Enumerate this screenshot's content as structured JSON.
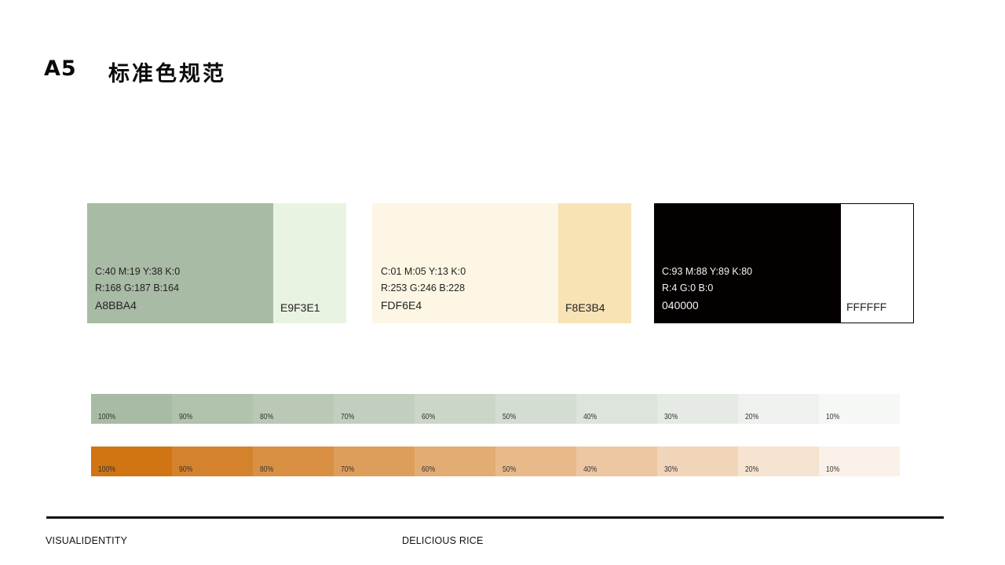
{
  "header": {
    "code": "A5",
    "title": "标准色规范"
  },
  "swatches": {
    "green_main": {
      "color": "#A8BBA4",
      "cmyk": "C:40  M:19  Y:38  K:0",
      "rgb": "R:168  G:187  B:164",
      "hex": "A8BBA4"
    },
    "green_light": {
      "color": "#E9F3E1",
      "hex": "E9F3E1"
    },
    "cream_main": {
      "color": "#FDF6E4",
      "cmyk": "C:01  M:05  Y:13  K:0",
      "rgb": "R:253  G:246  B:228",
      "hex": "FDF6E4"
    },
    "cream_light": {
      "color": "#F8E3B4",
      "hex": "F8E3B4"
    },
    "black_main": {
      "color": "#040000",
      "cmyk": "C:93  M:88  Y:89  K:80",
      "rgb": "R:4  G:0  B:0",
      "hex": "040000"
    },
    "white": {
      "color": "#FFFFFF",
      "hex": "FFFFFF"
    }
  },
  "ramps": {
    "green": {
      "base": "#A8BBA4",
      "steps": [
        "100%",
        "90%",
        "80%",
        "70%",
        "60%",
        "50%",
        "40%",
        "30%",
        "20%",
        "10%"
      ],
      "tints": [
        1.0,
        0.9,
        0.8,
        0.7,
        0.6,
        0.5,
        0.4,
        0.3,
        0.2,
        0.1
      ]
    },
    "orange": {
      "base": "#D07414",
      "steps": [
        "100%",
        "90%",
        "80%",
        "70%",
        "60%",
        "50%",
        "40%",
        "30%",
        "20%",
        "10%"
      ],
      "tints": [
        1.0,
        0.9,
        0.8,
        0.7,
        0.6,
        0.5,
        0.4,
        0.3,
        0.2,
        0.1
      ]
    }
  },
  "footer": {
    "left": "VISUALIDENTITY",
    "center": "DELICIOUS RICE"
  }
}
